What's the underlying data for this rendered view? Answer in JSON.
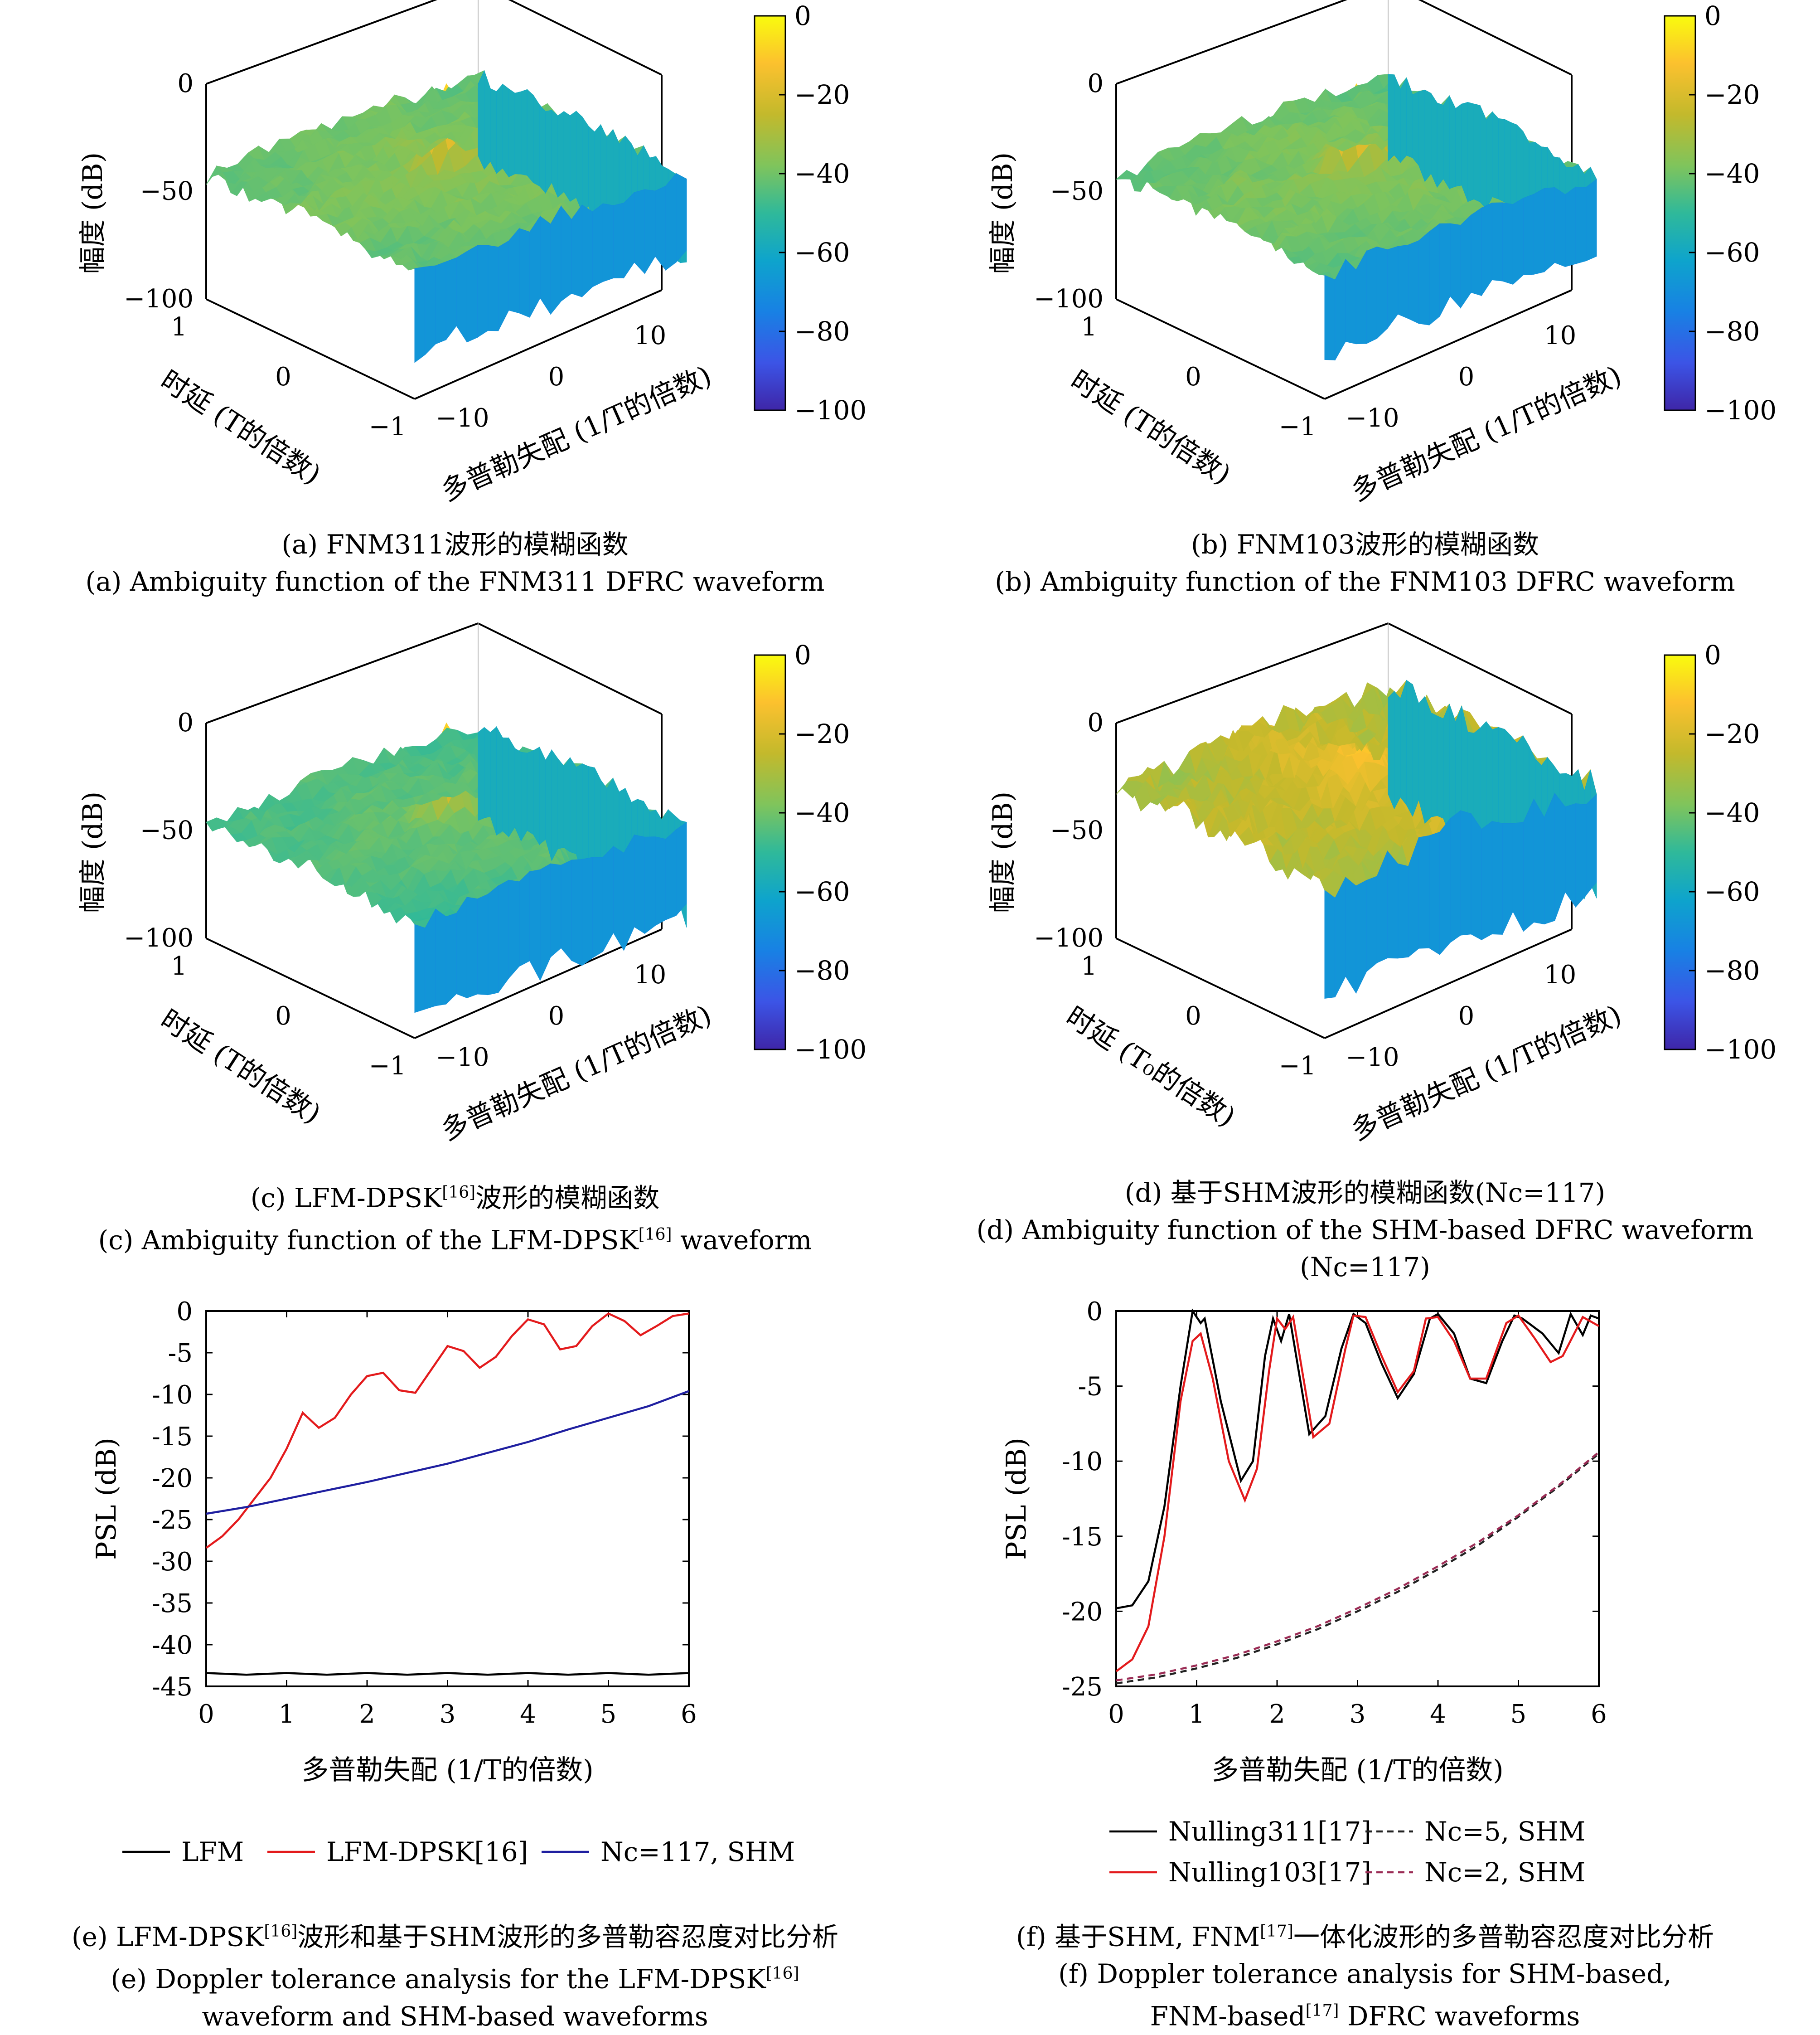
{
  "chart_data": [
    {
      "id": "a",
      "type": "surface3d",
      "zlabel": "幅度 (dB)",
      "ylabel": "时延 (T的倍数)",
      "xlabel": "多普勒失配 (1/T的倍数)",
      "z_ticks": [
        "0",
        "−50",
        "−100"
      ],
      "y_ticks": [
        "1",
        "0",
        "−1"
      ],
      "x_ticks": [
        "−10",
        "0",
        "10"
      ],
      "zlim": [
        -100,
        0
      ],
      "colorbar_ticks": [
        "0",
        "−20",
        "−40",
        "−60",
        "−80",
        "−100"
      ],
      "peak_db": 0,
      "floor_db": -35,
      "caption_cn": "(a) FNM311波形的模糊函数",
      "caption_en": "(a) Ambiguity function of the FNM311 DFRC waveform"
    },
    {
      "id": "b",
      "type": "surface3d",
      "zlabel": "幅度 (dB)",
      "ylabel": "时延 (T的倍数)",
      "xlabel": "多普勒失配 (1/T的倍数)",
      "z_ticks": [
        "0",
        "−50",
        "−100"
      ],
      "y_ticks": [
        "1",
        "0",
        "−1"
      ],
      "x_ticks": [
        "−10",
        "0",
        "10"
      ],
      "zlim": [
        -100,
        0
      ],
      "colorbar_ticks": [
        "0",
        "−20",
        "−40",
        "−60",
        "−80",
        "−100"
      ],
      "peak_db": 0,
      "floor_db": -35,
      "caption_cn": "(b) FNM103波形的模糊函数",
      "caption_en": "(b) Ambiguity function of the FNM103 DFRC waveform"
    },
    {
      "id": "c",
      "type": "surface3d",
      "zlabel": "幅度 (dB)",
      "ylabel": "时延 (T的倍数)",
      "xlabel": "多普勒失配 (1/T的倍数)",
      "z_ticks": [
        "0",
        "−50",
        "−100"
      ],
      "y_ticks": [
        "1",
        "0",
        "−1"
      ],
      "x_ticks": [
        "−10",
        "0",
        "10"
      ],
      "zlim": [
        -100,
        0
      ],
      "colorbar_ticks": [
        "0",
        "−20",
        "−40",
        "−60",
        "−80",
        "−100"
      ],
      "peak_db": 0,
      "floor_db": -40,
      "caption_cn_pre": "(c) LFM-DPSK",
      "caption_cn_sup": "[16]",
      "caption_cn_post": "波形的模糊函数",
      "caption_en_pre": "(c) Ambiguity function of the LFM-DPSK",
      "caption_en_sup": "[16]",
      "caption_en_post": " waveform"
    },
    {
      "id": "d",
      "type": "surface3d",
      "zlabel": "幅度 (dB)",
      "ylabel": "时延 (T₀的倍数)",
      "xlabel": "多普勒失配 (1/T的倍数)",
      "z_ticks": [
        "0",
        "−50",
        "−100"
      ],
      "y_ticks": [
        "1",
        "0",
        "−1"
      ],
      "x_ticks": [
        "−10",
        "0",
        "10"
      ],
      "zlim": [
        -100,
        0
      ],
      "colorbar_ticks": [
        "0",
        "−20",
        "−40",
        "−60",
        "−80",
        "−100"
      ],
      "peak_db": -10,
      "floor_db": -25,
      "caption_cn": "(d) 基于SHM波形的模糊函数(Nc=117)",
      "caption_en": "(d) Ambiguity function of the SHM-based DFRC waveform (Nc=117)"
    },
    {
      "id": "e",
      "type": "line",
      "xlabel": "多普勒失配 (1/T的倍数)",
      "ylabel": "PSL (dB)",
      "xlim": [
        0,
        6
      ],
      "ylim": [
        -45,
        0
      ],
      "xticks": [
        0,
        1,
        2,
        3,
        4,
        5,
        6
      ],
      "yticks": [
        0,
        -5,
        -10,
        -15,
        -20,
        -25,
        -30,
        -35,
        -40,
        -45
      ],
      "series": [
        {
          "name": "LFM",
          "color": "#000000",
          "dash": "",
          "x": [
            0,
            0.5,
            1,
            1.5,
            2,
            2.5,
            3,
            3.5,
            4,
            4.5,
            5,
            5.5,
            6
          ],
          "y": [
            -43.4,
            -43.6,
            -43.4,
            -43.6,
            -43.4,
            -43.6,
            -43.4,
            -43.6,
            -43.4,
            -43.6,
            -43.4,
            -43.6,
            -43.4
          ]
        },
        {
          "name": "LFM-DPSK[16]",
          "color": "#e31a1c",
          "dash": "",
          "x": [
            0,
            0.2,
            0.4,
            0.6,
            0.8,
            1.0,
            1.2,
            1.4,
            1.6,
            1.8,
            2.0,
            2.2,
            2.4,
            2.6,
            2.8,
            3.0,
            3.2,
            3.4,
            3.6,
            3.8,
            4.0,
            4.2,
            4.4,
            4.6,
            4.8,
            5.0,
            5.2,
            5.4,
            5.6,
            5.8,
            6.0
          ],
          "y": [
            -28.4,
            -27.0,
            -25.0,
            -22.5,
            -20.0,
            -16.5,
            -12.2,
            -14.0,
            -12.8,
            -10.0,
            -7.8,
            -7.4,
            -9.5,
            -9.8,
            -7.0,
            -4.2,
            -4.8,
            -6.8,
            -5.5,
            -3.0,
            -1.0,
            -1.6,
            -4.6,
            -4.2,
            -1.8,
            -0.3,
            -1.2,
            -2.9,
            -1.8,
            -0.6,
            -0.3
          ]
        },
        {
          "name": "Nc=117, SHM",
          "color": "#1f1fa0",
          "dash": "",
          "x": [
            0,
            0.5,
            1,
            1.5,
            2,
            2.5,
            3,
            3.5,
            4,
            4.5,
            5,
            5.5,
            6
          ],
          "y": [
            -24.3,
            -23.5,
            -22.5,
            -21.5,
            -20.5,
            -19.4,
            -18.3,
            -17.0,
            -15.7,
            -14.2,
            -12.8,
            -11.4,
            -9.6
          ]
        }
      ],
      "legend": [
        "LFM",
        "LFM-DPSK[16]",
        "Nc=117, SHM"
      ],
      "legend_position": "bottom",
      "caption_cn_pre": "(e) LFM-DPSK",
      "caption_cn_sup": "[16]",
      "caption_cn_post": "波形和基于SHM波形的多普勒容忍度对比分析",
      "caption_en_1_pre": "(e) Doppler tolerance analysis for the LFM-DPSK",
      "caption_en_1_sup": "[16]",
      "caption_en_2": "waveform and SHM-based waveforms"
    },
    {
      "id": "f",
      "type": "line",
      "xlabel": "多普勒失配 (1/T的倍数)",
      "ylabel": "PSL (dB)",
      "xlim": [
        0,
        6
      ],
      "ylim": [
        -25,
        0
      ],
      "xticks": [
        0,
        1,
        2,
        3,
        4,
        5,
        6
      ],
      "yticks": [
        0,
        -5,
        -10,
        -15,
        -20,
        -25
      ],
      "series": [
        {
          "name": "Nulling311[17]",
          "color": "#000000",
          "dash": "",
          "x": [
            0,
            0.2,
            0.4,
            0.6,
            0.8,
            0.95,
            1.05,
            1.1,
            1.3,
            1.55,
            1.7,
            1.85,
            1.95,
            2.05,
            2.15,
            2.4,
            2.6,
            2.8,
            2.95,
            3.1,
            3.3,
            3.5,
            3.7,
            3.9,
            4.0,
            4.2,
            4.4,
            4.6,
            4.8,
            4.95,
            5.05,
            5.3,
            5.5,
            5.65,
            5.8,
            5.9,
            6.0
          ],
          "y": [
            -19.8,
            -19.6,
            -18.0,
            -13.0,
            -5.0,
            0,
            -0.8,
            -0.5,
            -6.0,
            -11.3,
            -10.0,
            -3.0,
            -0.5,
            -2.0,
            -0.2,
            -8.2,
            -7.0,
            -2.5,
            -0.2,
            -0.8,
            -3.5,
            -5.8,
            -4.2,
            -0.5,
            -0.2,
            -1.5,
            -4.5,
            -4.8,
            -2.0,
            -0.3,
            -0.5,
            -1.5,
            -2.8,
            -0.2,
            -1.6,
            -0.3,
            -0.5
          ]
        },
        {
          "name": "Nulling103[17]",
          "color": "#e31a1c",
          "dash": "",
          "x": [
            0,
            0.2,
            0.4,
            0.6,
            0.8,
            0.95,
            1.05,
            1.2,
            1.4,
            1.6,
            1.75,
            1.9,
            2.0,
            2.1,
            2.2,
            2.45,
            2.65,
            2.85,
            2.95,
            3.1,
            3.3,
            3.5,
            3.7,
            3.85,
            4.0,
            4.2,
            4.4,
            4.6,
            4.85,
            5.0,
            5.2,
            5.4,
            5.55,
            5.8,
            6.0
          ],
          "y": [
            -24.0,
            -23.2,
            -21.0,
            -15.0,
            -6.0,
            -2.0,
            -1.5,
            -4.5,
            -10.0,
            -12.6,
            -10.5,
            -4.0,
            -0.5,
            -1.2,
            -0.4,
            -8.4,
            -7.5,
            -2.5,
            -0.3,
            -0.4,
            -3.0,
            -5.4,
            -4.0,
            -0.5,
            -0.4,
            -2.0,
            -4.5,
            -4.5,
            -0.8,
            -0.3,
            -1.8,
            -3.4,
            -3.0,
            -0.4,
            -1.0
          ]
        },
        {
          "name": "Nc=5, SHM",
          "color": "#222222",
          "dash": "14,10",
          "x": [
            0,
            0.5,
            1,
            1.5,
            2,
            2.5,
            3,
            3.5,
            4,
            4.5,
            5,
            5.5,
            6
          ],
          "y": [
            -24.8,
            -24.4,
            -23.8,
            -23.1,
            -22.2,
            -21.2,
            -20.0,
            -18.7,
            -17.2,
            -15.6,
            -13.7,
            -11.7,
            -9.5
          ]
        },
        {
          "name": "Nc=2, SHM",
          "color": "#9b2c55",
          "dash": "14,10",
          "x": [
            0,
            0.5,
            1,
            1.5,
            2,
            2.5,
            3,
            3.5,
            4,
            4.5,
            5,
            5.5,
            6
          ],
          "y": [
            -24.6,
            -24.2,
            -23.6,
            -22.9,
            -22.0,
            -21.0,
            -19.8,
            -18.5,
            -17.0,
            -15.4,
            -13.6,
            -11.6,
            -9.4
          ]
        }
      ],
      "legend": [
        "Nulling311[17]",
        "Nulling103[17]",
        "Nc=5, SHM",
        "Nc=2, SHM"
      ],
      "legend_position": "bottom",
      "caption_cn_pre": "(f) 基于SHM, FNM",
      "caption_cn_sup": "[17]",
      "caption_cn_post": "一体化波形的多普勒容忍度对比分析",
      "caption_en_1": "(f) Doppler tolerance analysis for SHM-based,",
      "caption_en_2_pre": "FNM-based",
      "caption_en_2_sup": "[17]",
      "caption_en_2_post": " DFRC waveforms"
    }
  ]
}
